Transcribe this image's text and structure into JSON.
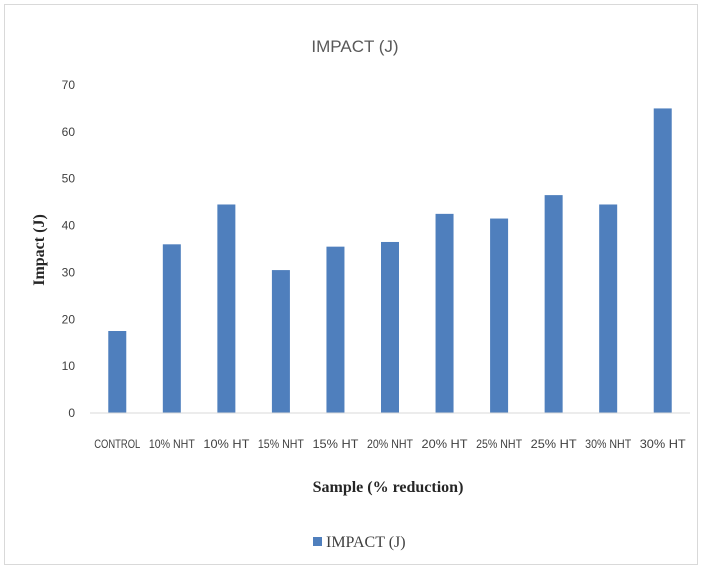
{
  "chart_data": {
    "type": "bar",
    "title": "IMPACT (J)",
    "xlabel": "Sample (% reduction)",
    "ylabel": "Impact (J)",
    "ylim": [
      0,
      70
    ],
    "yticks": [
      0,
      10,
      20,
      30,
      40,
      50,
      60,
      70
    ],
    "grid": false,
    "legend_position": "bottom",
    "categories": [
      "CONTROL",
      "10% NHT",
      "10% HT",
      "15% NHT",
      "15% HT",
      "20% NHT",
      "20% HT",
      "25% NHT",
      "25% HT",
      "30% NHT",
      "30% HT"
    ],
    "series": [
      {
        "name": "IMPACT (J)",
        "color": "#4f7fbd",
        "values": [
          17.5,
          36,
          44.5,
          30.5,
          35.5,
          36.5,
          42.5,
          41.5,
          46.5,
          44.5,
          65
        ]
      }
    ]
  }
}
